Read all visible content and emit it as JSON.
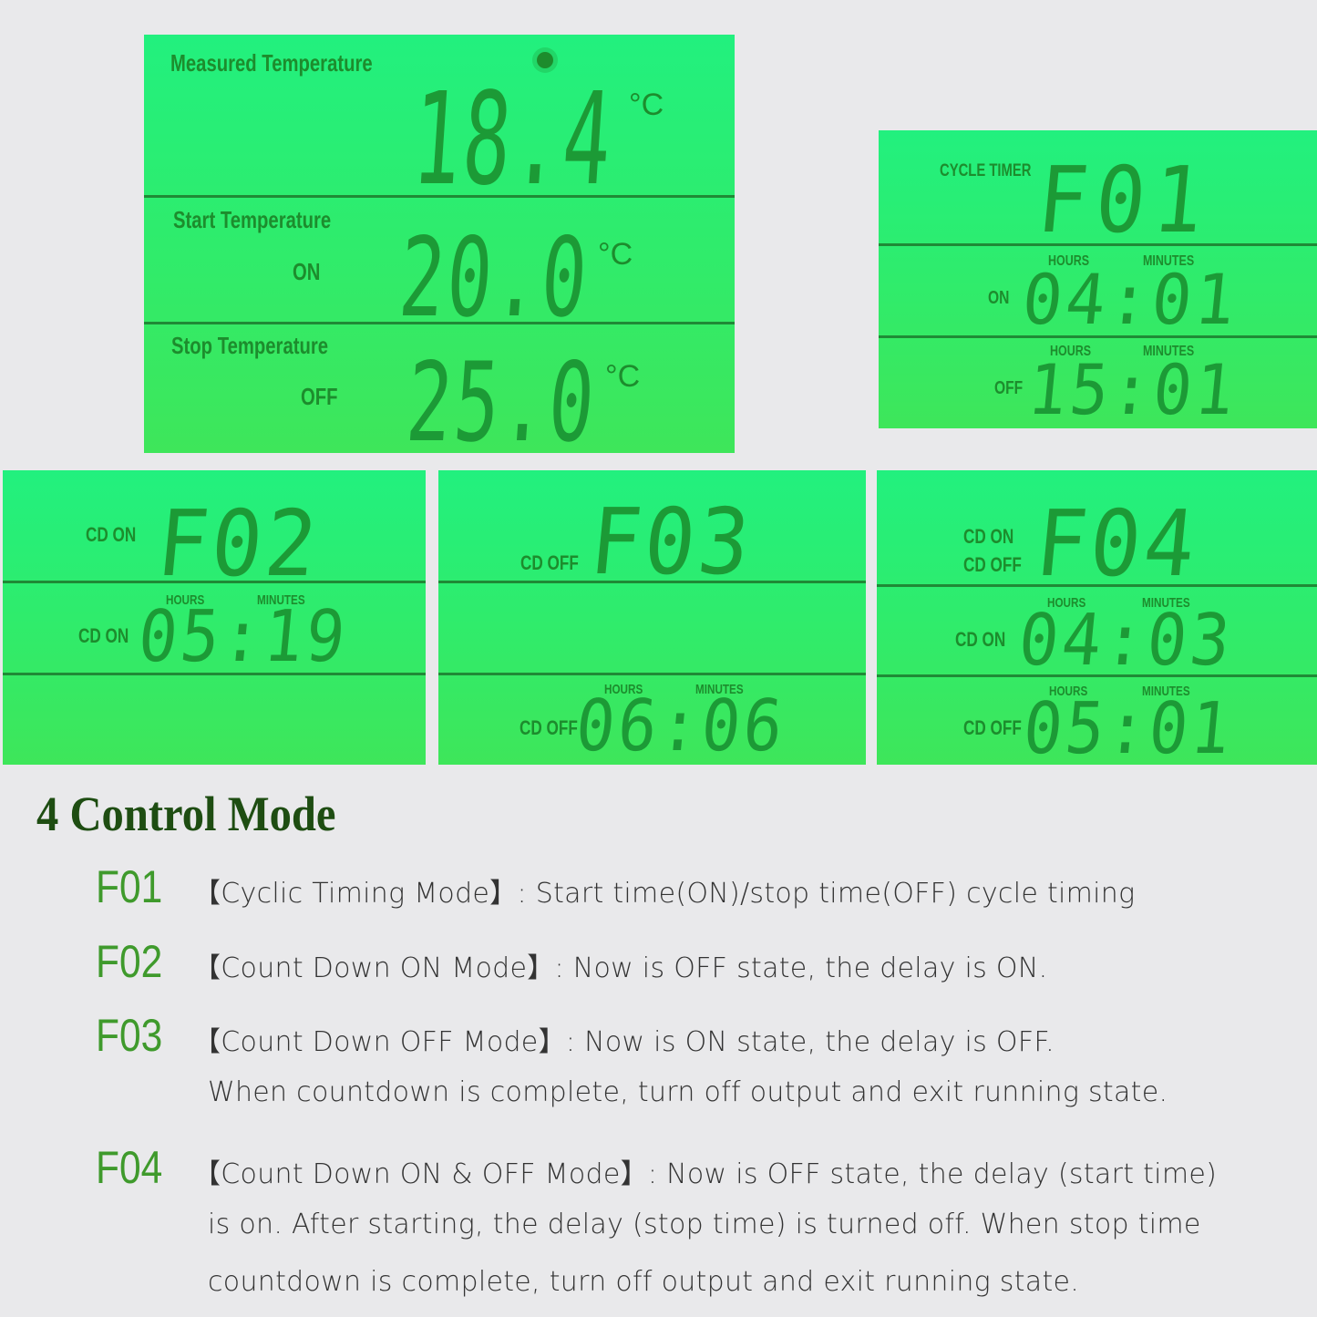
{
  "colors": {
    "lcd_green": "#2fec6c",
    "lcd_text": "#1d8c2d",
    "title": "#1e4d12",
    "code": "#3f9a2c"
  },
  "thermo": {
    "measured_label": "Measured Temperature",
    "measured_value": "18.4",
    "unit": "°C",
    "sun_icon": "sun-icon",
    "start_label": "Start Temperature",
    "start_state": "ON",
    "start_value": "20.0",
    "stop_label": "Stop Temperature",
    "stop_state": "OFF",
    "stop_value": "25.0"
  },
  "f01": {
    "mode_label": "CYCLE TIMER",
    "mode": "F01",
    "hours": "HOURS",
    "minutes": "MINUTES",
    "on_label": "ON",
    "on_value": "04:01",
    "off_label": "OFF",
    "off_value": "15:01"
  },
  "f02": {
    "mode_label": "CD ON",
    "mode": "F02",
    "hours": "HOURS",
    "minutes": "MINUTES",
    "row_label": "CD ON",
    "row_value": "05:19"
  },
  "f03": {
    "mode_label": "CD OFF",
    "mode": "F03",
    "hours": "HOURS",
    "minutes": "MINUTES",
    "row_label": "CD OFF",
    "row_value": "06:06"
  },
  "f04": {
    "mode_label_1": "CD ON",
    "mode_label_2": "CD OFF",
    "mode": "F04",
    "hours": "HOURS",
    "minutes": "MINUTES",
    "on_label": "CD ON",
    "on_value": "04:03",
    "off_label": "CD OFF",
    "off_value": "05:01"
  },
  "section": {
    "title": "4 Control Mode",
    "modes": [
      {
        "code": "F01",
        "lines": [
          "【Cyclic Timing Mode】: Start time(ON)/stop time(OFF) cycle timing"
        ]
      },
      {
        "code": "F02",
        "lines": [
          "【Count Down ON Mode】: Now is OFF state, the delay is ON."
        ]
      },
      {
        "code": "F03",
        "lines": [
          "【Count Down OFF Mode】: Now is ON state, the delay is OFF.",
          "When countdown is complete, turn off output and exit running state."
        ]
      },
      {
        "code": "F04",
        "lines": [
          "【Count Down ON & OFF Mode】: Now is OFF state, the delay (start time)",
          "is on. After starting, the delay (stop time) is turned off. When stop time",
          "countdown is complete, turn off output and exit running state."
        ]
      }
    ]
  }
}
